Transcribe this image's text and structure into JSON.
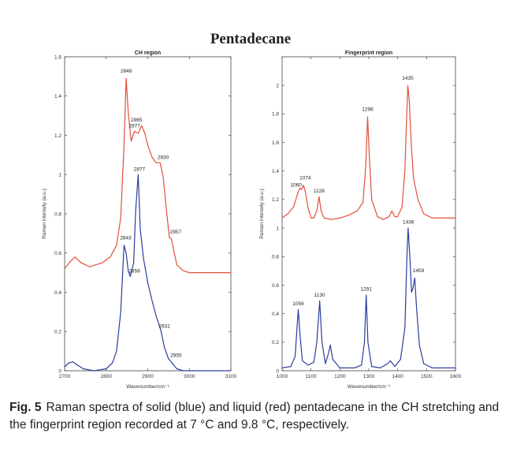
{
  "figure": {
    "title": "Pentadecane"
  },
  "caption": {
    "label": "Fig. 5",
    "text": "Raman spectra of solid (blue) and liquid (red) pentadecane in the CH stretching and the fingerprint region recorded at 7 °C and 9.8 °C, respectively."
  },
  "colors": {
    "solid": "#2a3d9c",
    "liquid": "#e2503a"
  },
  "chart_data": [
    {
      "type": "line",
      "title": "CH region",
      "xlabel": "Wavenumber/cm⁻¹",
      "ylabel": "Raman intensity (a.u.)",
      "xlim": [
        2700,
        3100
      ],
      "ylim": [
        0,
        1.6
      ],
      "xticks": [
        "2700",
        "2800",
        "2900",
        "3000",
        "3100"
      ],
      "yticks": [
        "0",
        "0.2",
        "0.4",
        "0.6",
        "0.8",
        "1",
        "1.2",
        "1.4",
        "1.6"
      ],
      "series": [
        {
          "color": "#e2503a",
          "x": [
            2700,
            2715,
            2725,
            2740,
            2760,
            2790,
            2810,
            2825,
            2835,
            2843,
            2848,
            2853,
            2860,
            2868,
            2877,
            2885,
            2893,
            2900,
            2910,
            2920,
            2930,
            2937,
            2945,
            2952,
            2957,
            2962,
            2970,
            2985,
            3000,
            3050,
            3100
          ],
          "y": [
            0.52,
            0.56,
            0.58,
            0.55,
            0.53,
            0.55,
            0.58,
            0.64,
            0.78,
            1.15,
            1.49,
            1.32,
            1.17,
            1.22,
            1.21,
            1.25,
            1.21,
            1.15,
            1.09,
            1.06,
            1.06,
            0.99,
            0.82,
            0.68,
            0.67,
            0.62,
            0.54,
            0.51,
            0.5,
            0.5,
            0.5
          ]
        },
        {
          "color": "#2a3d9c",
          "x": [
            2700,
            2710,
            2720,
            2730,
            2745,
            2770,
            2800,
            2815,
            2825,
            2835,
            2843,
            2848,
            2853,
            2858,
            2866,
            2871,
            2877,
            2882,
            2890,
            2900,
            2910,
            2920,
            2931,
            2940,
            2950,
            2955,
            2962,
            2970,
            2985,
            3000,
            3050,
            3100
          ],
          "y": [
            0.02,
            0.04,
            0.045,
            0.03,
            0.01,
            0.0,
            0.01,
            0.04,
            0.1,
            0.3,
            0.64,
            0.6,
            0.51,
            0.48,
            0.55,
            0.82,
            1.0,
            0.72,
            0.57,
            0.45,
            0.36,
            0.28,
            0.21,
            0.12,
            0.06,
            0.05,
            0.03,
            0.01,
            0.0,
            0.0,
            0.0,
            0.0
          ]
        }
      ],
      "annotations": [
        {
          "text": "2848",
          "x": 2848,
          "y": 1.52
        },
        {
          "text": "2865",
          "x": 2873,
          "y": 1.27
        },
        {
          "text": "2877",
          "x": 2868,
          "y": 1.24
        },
        {
          "text": "2930",
          "x": 2937,
          "y": 1.08
        },
        {
          "text": "2957",
          "x": 2967,
          "y": 0.7
        },
        {
          "text": "2877",
          "x": 2880,
          "y": 1.02
        },
        {
          "text": "2843",
          "x": 2847,
          "y": 0.67
        },
        {
          "text": "2856",
          "x": 2868,
          "y": 0.5
        },
        {
          "text": "2931",
          "x": 2940,
          "y": 0.22
        },
        {
          "text": "2955",
          "x": 2968,
          "y": 0.07
        }
      ]
    },
    {
      "type": "line",
      "title": "Fingerprint region",
      "xlabel": "Wavenumber/cm⁻¹",
      "ylabel": "Raman intensity (a.u.)",
      "xlim": [
        1000,
        1600
      ],
      "ylim": [
        0,
        2.2
      ],
      "xticks": [
        "1000",
        "1100",
        "1200",
        "1300",
        "1400",
        "1500",
        "1600"
      ],
      "yticks": [
        "0",
        "0.2",
        "0.4",
        "0.6",
        "0.8",
        "1",
        "1.2",
        "1.4",
        "1.6",
        "1.8",
        "2"
      ],
      "series": [
        {
          "color": "#e2503a",
          "x": [
            1000,
            1020,
            1040,
            1055,
            1062,
            1068,
            1074,
            1080,
            1090,
            1100,
            1110,
            1120,
            1128,
            1135,
            1145,
            1170,
            1200,
            1230,
            1260,
            1280,
            1290,
            1296,
            1302,
            1310,
            1330,
            1350,
            1370,
            1380,
            1390,
            1400,
            1415,
            1425,
            1430,
            1435,
            1440,
            1448,
            1455,
            1462,
            1470,
            1490,
            1520,
            1560,
            1600
          ],
          "y": [
            1.07,
            1.1,
            1.15,
            1.25,
            1.28,
            1.27,
            1.3,
            1.26,
            1.14,
            1.07,
            1.07,
            1.12,
            1.22,
            1.12,
            1.07,
            1.06,
            1.07,
            1.09,
            1.12,
            1.18,
            1.45,
            1.78,
            1.5,
            1.2,
            1.08,
            1.06,
            1.08,
            1.12,
            1.08,
            1.08,
            1.15,
            1.4,
            1.72,
            2.0,
            1.9,
            1.55,
            1.35,
            1.28,
            1.2,
            1.1,
            1.07,
            1.07,
            1.07
          ]
        },
        {
          "color": "#2a3d9c",
          "x": [
            1000,
            1030,
            1045,
            1050,
            1056,
            1062,
            1070,
            1090,
            1110,
            1120,
            1130,
            1138,
            1150,
            1160,
            1167,
            1175,
            1200,
            1250,
            1275,
            1285,
            1291,
            1297,
            1310,
            1340,
            1365,
            1375,
            1390,
            1410,
            1425,
            1432,
            1436,
            1442,
            1448,
            1453,
            1459,
            1465,
            1475,
            1490,
            1520,
            1560,
            1600
          ],
          "y": [
            0.02,
            0.03,
            0.1,
            0.25,
            0.43,
            0.25,
            0.07,
            0.04,
            0.06,
            0.2,
            0.49,
            0.2,
            0.05,
            0.12,
            0.18,
            0.08,
            0.02,
            0.02,
            0.04,
            0.2,
            0.53,
            0.2,
            0.03,
            0.02,
            0.05,
            0.07,
            0.03,
            0.08,
            0.3,
            0.8,
            1.0,
            0.8,
            0.55,
            0.58,
            0.65,
            0.45,
            0.18,
            0.05,
            0.02,
            0.02,
            0.02
          ]
        }
      ],
      "annotations": [
        {
          "text": "1435",
          "x": 1435,
          "y": 2.04
        },
        {
          "text": "1296",
          "x": 1296,
          "y": 1.82
        },
        {
          "text": "1074",
          "x": 1080,
          "y": 1.34
        },
        {
          "text": "1060",
          "x": 1048,
          "y": 1.29
        },
        {
          "text": "1128",
          "x": 1128,
          "y": 1.25
        },
        {
          "text": "1436",
          "x": 1437,
          "y": 1.03
        },
        {
          "text": "1459",
          "x": 1472,
          "y": 0.69
        },
        {
          "text": "1056",
          "x": 1056,
          "y": 0.46
        },
        {
          "text": "1130",
          "x": 1130,
          "y": 0.52
        },
        {
          "text": "1291",
          "x": 1291,
          "y": 0.56
        }
      ]
    }
  ]
}
